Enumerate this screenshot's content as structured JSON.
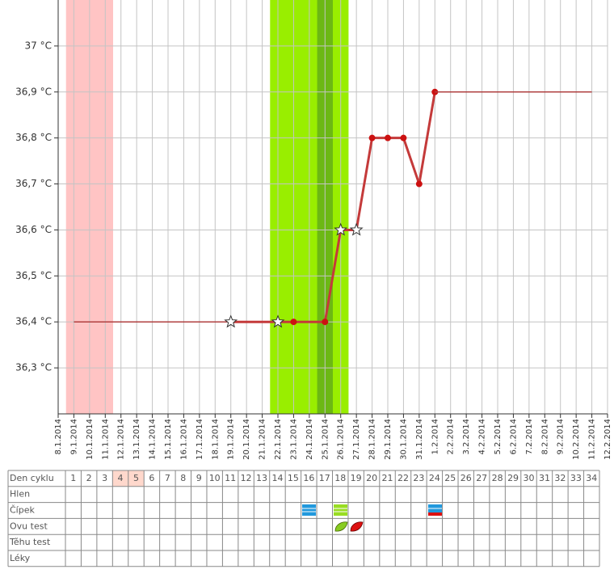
{
  "chart_data": {
    "type": "line",
    "categories": [
      "8.1.2014",
      "9.1.2014",
      "10.1.2014",
      "11.1.2014",
      "12.1.2014",
      "13.1.2014",
      "14.1.2014",
      "15.1.2014",
      "16.1.2014",
      "17.1.2014",
      "18.1.2014",
      "19.1.2014",
      "20.1.2014",
      "21.1.2014",
      "22.1.2014",
      "23.1.2014",
      "24.1.2014",
      "25.1.2014",
      "26.1.2014",
      "27.1.2014",
      "28.1.2014",
      "29.1.2014",
      "30.1.2014",
      "31.1.2014",
      "1.2.2014",
      "2.2.2014",
      "3.2.2014",
      "4.2.2014",
      "5.2.2014",
      "6.2.2014",
      "7.2.2014",
      "8.2.2014",
      "9.2.2014",
      "10.2.2014",
      "11.2.2014",
      "12.2.2014"
    ],
    "ylim": [
      36.2,
      37.1
    ],
    "yticks": [
      {
        "value": 36.3,
        "label": "36,3 °C"
      },
      {
        "value": 36.4,
        "label": "36,4 °C"
      },
      {
        "value": 36.5,
        "label": "36,5 °C"
      },
      {
        "value": 36.6,
        "label": "36,6 °C"
      },
      {
        "value": 36.7,
        "label": "36,7 °C"
      },
      {
        "value": 36.8,
        "label": "36,8 °C"
      },
      {
        "value": 36.9,
        "label": "36,9 °C"
      },
      {
        "value": 37,
        "label": "37 °C"
      }
    ],
    "grid": true,
    "bands": [
      {
        "from": "9.1.2014",
        "to": "11.1.2014",
        "color": "#ffc4c4"
      },
      {
        "from": "22.1.2014",
        "to": "26.1.2014",
        "color": "#99ee00"
      },
      {
        "from": "25.1.2014",
        "to": "25.1.2014",
        "color": "#6cb814"
      }
    ],
    "series": [
      {
        "style": "thin",
        "color": "#b04040",
        "x": [
          "9.1.2014",
          "22.1.2014"
        ],
        "values": [
          36.4,
          36.4
        ]
      },
      {
        "style": "thick",
        "color": "#c43a3a",
        "x": [
          "19.1.2014",
          "22.1.2014",
          "23.1.2014",
          "25.1.2014",
          "26.1.2014",
          "27.1.2014",
          "28.1.2014",
          "29.1.2014",
          "30.1.2014",
          "31.1.2014",
          "1.2.2014"
        ],
        "values": [
          36.4,
          36.4,
          36.4,
          36.4,
          36.6,
          36.6,
          36.8,
          36.8,
          36.8,
          36.7,
          36.9
        ],
        "markers": [
          "star",
          "star",
          "dot",
          "dot",
          "star",
          "star",
          "dot",
          "dot",
          "dot",
          "dot",
          "dot"
        ]
      },
      {
        "style": "thin",
        "color": "#b04040",
        "x": [
          "1.2.2014",
          "11.2.2014"
        ],
        "values": [
          36.9,
          36.9
        ]
      }
    ]
  },
  "table": {
    "row_labels": [
      "Den cyklu",
      "Hlen",
      "Čípek",
      "Ovu test",
      "Těhu test",
      "Léky"
    ],
    "cycle_days": [
      1,
      2,
      3,
      4,
      5,
      6,
      7,
      8,
      9,
      10,
      11,
      12,
      13,
      14,
      15,
      16,
      17,
      18,
      19,
      20,
      21,
      22,
      23,
      24,
      25,
      26,
      27,
      28,
      29,
      30,
      31,
      32,
      33,
      34
    ],
    "highlighted_cycle_days": [
      4,
      5
    ]
  }
}
